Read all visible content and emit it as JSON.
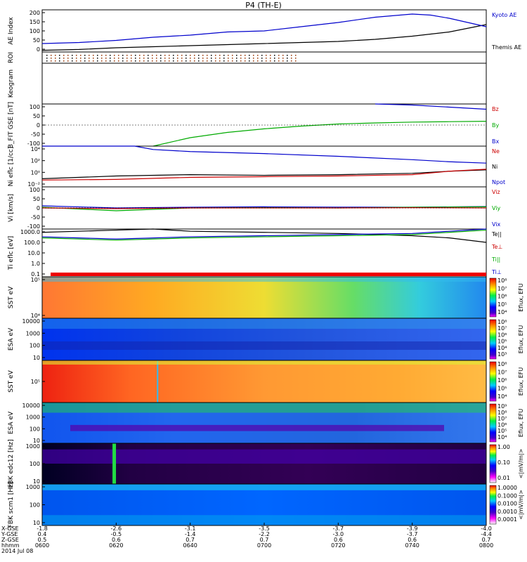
{
  "chart_data": {
    "type": "multi-panel",
    "title": "P4 (TH-E)",
    "date_label": "2014 Jul 08",
    "x_axis": {
      "row_labels": [
        "X-GSE",
        "Y-GSE",
        "Z-GSE",
        "hhmm"
      ],
      "columns": [
        {
          "x": "-1.8",
          "y": "0.4",
          "z": "0.5",
          "t": "0600"
        },
        {
          "x": "-2.6",
          "y": "-0.5",
          "z": "0.6",
          "t": "0620"
        },
        {
          "x": "-3.1",
          "y": "-1.4",
          "z": "0.7",
          "t": "0640"
        },
        {
          "x": "-3.5",
          "y": "-2.2",
          "z": "0.7",
          "t": "0700"
        },
        {
          "x": "-3.7",
          "y": "-3.0",
          "z": "0.6",
          "t": "0720"
        },
        {
          "x": "-3.9",
          "y": "-3.7",
          "z": "0.6",
          "t": "0740"
        },
        {
          "x": "-4.0",
          "y": "-4.4",
          "z": "0.7",
          "t": "0800"
        }
      ]
    },
    "panels": [
      {
        "id": "ae",
        "ylabel": "AE Index",
        "ticks": [
          "0",
          "50",
          "100",
          "150",
          "200"
        ],
        "ylim": [
          0,
          200
        ],
        "legend": [
          {
            "text": "Kyoto AE",
            "color": "#0000cc"
          },
          {
            "text": "Themis AE",
            "color": "#000000"
          }
        ],
        "series": [
          {
            "name": "Themis AE",
            "color": "#000000",
            "t": [
              0,
              10,
              20,
              30,
              40,
              50,
              60,
              70,
              80,
              90,
              100,
              110,
              120
            ],
            "values": [
              8,
              12,
              20,
              25,
              30,
              35,
              40,
              45,
              50,
              60,
              75,
              95,
              130
            ]
          },
          {
            "name": "Kyoto AE",
            "color": "#0000cc",
            "t": [
              0,
              10,
              20,
              30,
              40,
              50,
              60,
              70,
              80,
              90,
              100,
              105,
              110,
              115,
              120
            ],
            "values": [
              40,
              45,
              55,
              70,
              80,
              95,
              100,
              120,
              140,
              165,
              180,
              175,
              160,
              140,
              120
            ]
          }
        ]
      },
      {
        "id": "roi",
        "ylabel": "ROI",
        "ticks": []
      },
      {
        "id": "keogram",
        "ylabel": "Keogram",
        "ticks": []
      },
      {
        "id": "bfit",
        "ylabel": "B_FIT GSE [nT]",
        "ticks": [
          "-100",
          "-50",
          "0",
          "50",
          "100"
        ],
        "ylim": [
          -100,
          100
        ],
        "legend": [
          {
            "text": "Bz",
            "color": "#cc0000"
          },
          {
            "text": "By",
            "color": "#00aa00"
          },
          {
            "text": "Bx",
            "color": "#0000cc"
          }
        ],
        "series": [
          {
            "name": "By",
            "color": "#00aa00",
            "t": [
              30,
              40,
              50,
              60,
              70,
              80,
              90,
              100,
              110,
              120
            ],
            "values": [
              -100,
              -60,
              -35,
              -18,
              -5,
              5,
              10,
              14,
              16,
              18
            ]
          },
          {
            "name": "Bx",
            "color": "#0000cc",
            "t": [
              90,
              100,
              110,
              120
            ],
            "values": [
              100,
              95,
              85,
              75
            ]
          }
        ]
      },
      {
        "id": "density",
        "ylabel": "Ni eflc [1/cc]",
        "ticks": [
          "10⁻²",
          "10⁰",
          "10²",
          "10⁴"
        ],
        "ylim": [
          -2,
          4
        ],
        "legend": [
          {
            "text": "Ne",
            "color": "#cc0000"
          },
          {
            "text": "Ni",
            "color": "#000000"
          },
          {
            "text": "Npot",
            "color": "#0000cc"
          }
        ],
        "series": [
          {
            "name": "Npot",
            "color": "#0000cc",
            "t": [
              0,
              25,
              30,
              40,
              60,
              80,
              100,
              110,
              120
            ],
            "values": [
              4.0,
              4.0,
              3.5,
              3.2,
              2.9,
              2.5,
              2.0,
              1.7,
              1.5
            ]
          },
          {
            "name": "Ni",
            "color": "#000000",
            "t": [
              0,
              20,
              40,
              60,
              80,
              100,
              110,
              120
            ],
            "values": [
              -0.8,
              -0.4,
              -0.2,
              -0.3,
              -0.2,
              0.0,
              0.3,
              0.5
            ]
          },
          {
            "name": "Ne",
            "color": "#cc0000",
            "t": [
              0,
              20,
              40,
              60,
              80,
              100,
              110,
              120
            ],
            "values": [
              -1.0,
              -0.9,
              -0.6,
              -0.5,
              -0.4,
              -0.2,
              0.3,
              0.6
            ]
          }
        ]
      },
      {
        "id": "velocity",
        "ylabel": "Vi [km/s]",
        "ticks": [
          "-100",
          "-50",
          "0",
          "50",
          "100"
        ],
        "ylim": [
          -150,
          150
        ],
        "legend": [
          {
            "text": "Viz",
            "color": "#cc0000"
          },
          {
            "text": "Viy",
            "color": "#00aa00"
          },
          {
            "text": "Vix",
            "color": "#0000cc"
          }
        ],
        "series": [
          {
            "name": "Vix",
            "color": "#0000cc",
            "t": [
              0,
              20,
              40,
              60,
              80,
              100,
              120
            ],
            "values": [
              15,
              0,
              5,
              8,
              6,
              5,
              10
            ]
          },
          {
            "name": "Viy",
            "color": "#00aa00",
            "t": [
              0,
              20,
              40,
              60,
              80,
              100,
              120
            ],
            "values": [
              5,
              -20,
              0,
              2,
              0,
              5,
              8
            ]
          },
          {
            "name": "Viz",
            "color": "#cc0000",
            "t": [
              0,
              20,
              40,
              60,
              80,
              100,
              120
            ],
            "values": [
              0,
              -5,
              0,
              0,
              0,
              2,
              0
            ]
          }
        ]
      },
      {
        "id": "temperature",
        "ylabel": "Ti eflc [eV]",
        "ticks": [
          "0.1",
          "1.0",
          "10.0",
          "100.0",
          "1000.0"
        ],
        "ylim": [
          -1,
          3.3
        ],
        "legend": [
          {
            "text": "Te||",
            "color": "#000000"
          },
          {
            "text": "Te⊥",
            "color": "#cc0000"
          },
          {
            "text": "Ti||",
            "color": "#00aa00"
          },
          {
            "text": "Ti⊥",
            "color": "#0000cc"
          }
        ],
        "series": [
          {
            "name": "Te||",
            "color": "#000000",
            "t": [
              0,
              20,
              30,
              40,
              60,
              80,
              100,
              110,
              120
            ],
            "values": [
              3.0,
              3.2,
              3.3,
              3.1,
              3.0,
              2.9,
              2.7,
              2.5,
              2.1
            ]
          },
          {
            "name": "Ti||",
            "color": "#00aa00",
            "t": [
              0,
              20,
              40,
              60,
              80,
              100,
              110,
              120
            ],
            "values": [
              2.5,
              2.3,
              2.5,
              2.6,
              2.7,
              2.8,
              3.0,
              3.2
            ]
          },
          {
            "name": "Ti⊥",
            "color": "#0000cc",
            "t": [
              0,
              20,
              40,
              60,
              80,
              100,
              110,
              120
            ],
            "values": [
              2.6,
              2.4,
              2.6,
              2.7,
              2.8,
              2.9,
              3.1,
              3.3
            ]
          }
        ]
      },
      {
        "id": "sst-i",
        "ylabel": "SST eV",
        "ticks": [
          "10⁴",
          "10⁵"
        ],
        "colorbar": [
          "10⁸",
          "10⁷",
          "10⁶",
          "10⁵",
          "10⁴"
        ],
        "cbar_label": "Eflux, EFU"
      },
      {
        "id": "esa-i",
        "ylabel": "ESA eV",
        "ticks": [
          "10",
          "100",
          "1000",
          "10000"
        ],
        "colorbar": [
          "10⁸",
          "10⁷",
          "10⁶",
          "10⁵",
          "10⁴",
          "10³"
        ],
        "cbar_label": "Eflux, EFU"
      },
      {
        "id": "sst-e",
        "ylabel": "SST eV",
        "ticks": [
          "10⁵"
        ],
        "colorbar": [
          "10⁸",
          "10⁷",
          "10⁶",
          "10⁵",
          "10⁴"
        ],
        "cbar_label": "Eflux, EFU"
      },
      {
        "id": "esa-e",
        "ylabel": "ESA eV",
        "ticks": [
          "10",
          "100",
          "1000",
          "10000"
        ],
        "colorbar": [
          "10⁹",
          "10⁸",
          "10⁷",
          "10⁶",
          "10⁵",
          "10⁴"
        ],
        "cbar_label": "Eflux, EFU"
      },
      {
        "id": "fbk-e",
        "ylabel": "FBK edc12 [Hz]",
        "ticks": [
          "10",
          "100",
          "1000"
        ],
        "colorbar": [
          "1.00",
          "0.10",
          "0.01"
        ],
        "cbar_label": "<|mV/m|>"
      },
      {
        "id": "fbk-b",
        "ylabel": "FBK scm1 [Hz]",
        "ticks": [
          "10",
          "100",
          "1000"
        ],
        "colorbar": [
          "1.0000",
          "0.1000",
          "0.0100",
          "0.0010",
          "0.0001"
        ],
        "cbar_label": "<|mV/m|>"
      }
    ]
  }
}
